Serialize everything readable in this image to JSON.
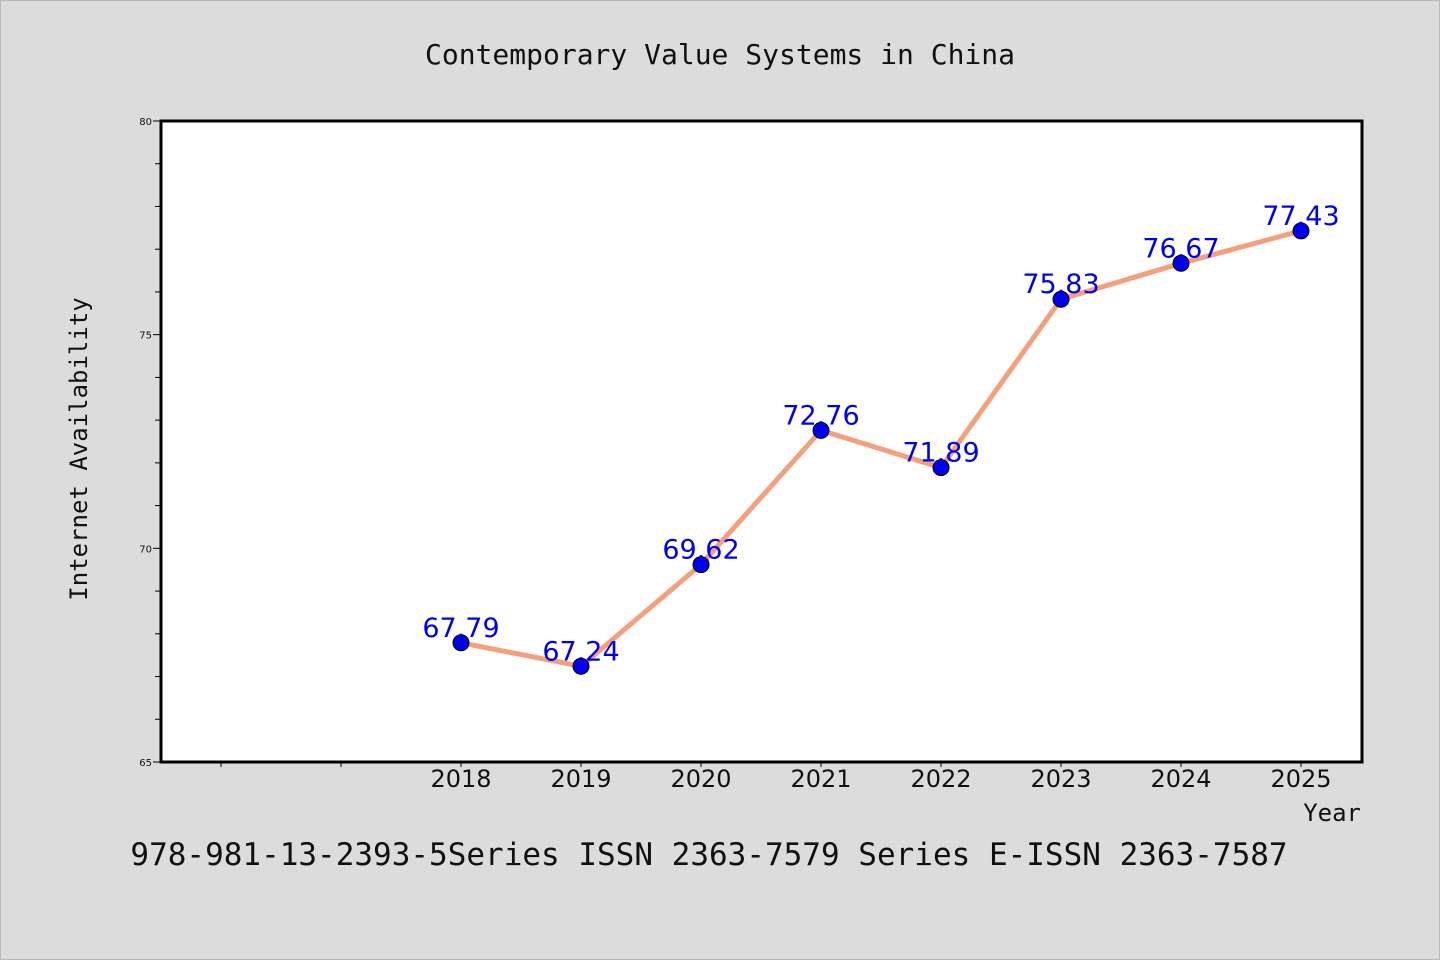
{
  "chart_data": {
    "type": "line",
    "title": "Contemporary Value Systems in China",
    "xlabel": "Year",
    "ylabel": "Internet Availability",
    "footer": "978-981-13-2393-5Series ISSN 2363-7579 Series E-ISSN 2363-7587",
    "categories": [
      "2018",
      "2019",
      "2020",
      "2021",
      "2022",
      "2023",
      "2024",
      "2025"
    ],
    "series": [
      {
        "values": [
          67.79,
          67.24,
          69.62,
          72.76,
          71.89,
          75.83,
          76.67,
          77.43
        ],
        "labels": [
          "67.79",
          "67.24",
          "69.62",
          "72.76",
          "71.89",
          "75.83",
          "76.67",
          "77.43"
        ]
      }
    ],
    "ylim": [
      65,
      80
    ],
    "yticks": [
      "65",
      "70",
      "75",
      "80"
    ],
    "grid": false,
    "line_color": "#f4a07e",
    "marker_color": "#0000ee",
    "label_color": "#0000ee",
    "background": "#dcdcdc",
    "plot_background": "#ffffff"
  }
}
